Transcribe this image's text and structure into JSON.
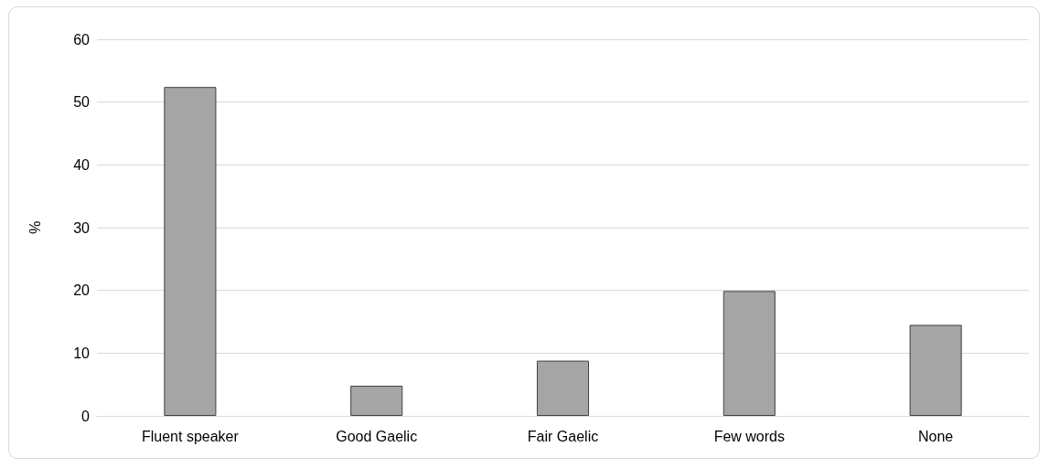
{
  "chart_data": {
    "type": "bar",
    "ylabel": "%",
    "categories": [
      "Fluent speaker",
      "Good Gaelic",
      "Fair Gaelic",
      "Few words",
      "None"
    ],
    "values": [
      52.4,
      4.8,
      8.8,
      19.9,
      14.5
    ],
    "color": "#a5a5a5",
    "ylim": [
      0,
      60
    ],
    "yticks": [
      0,
      10,
      20,
      30,
      40,
      50,
      60
    ],
    "grid": "y"
  }
}
